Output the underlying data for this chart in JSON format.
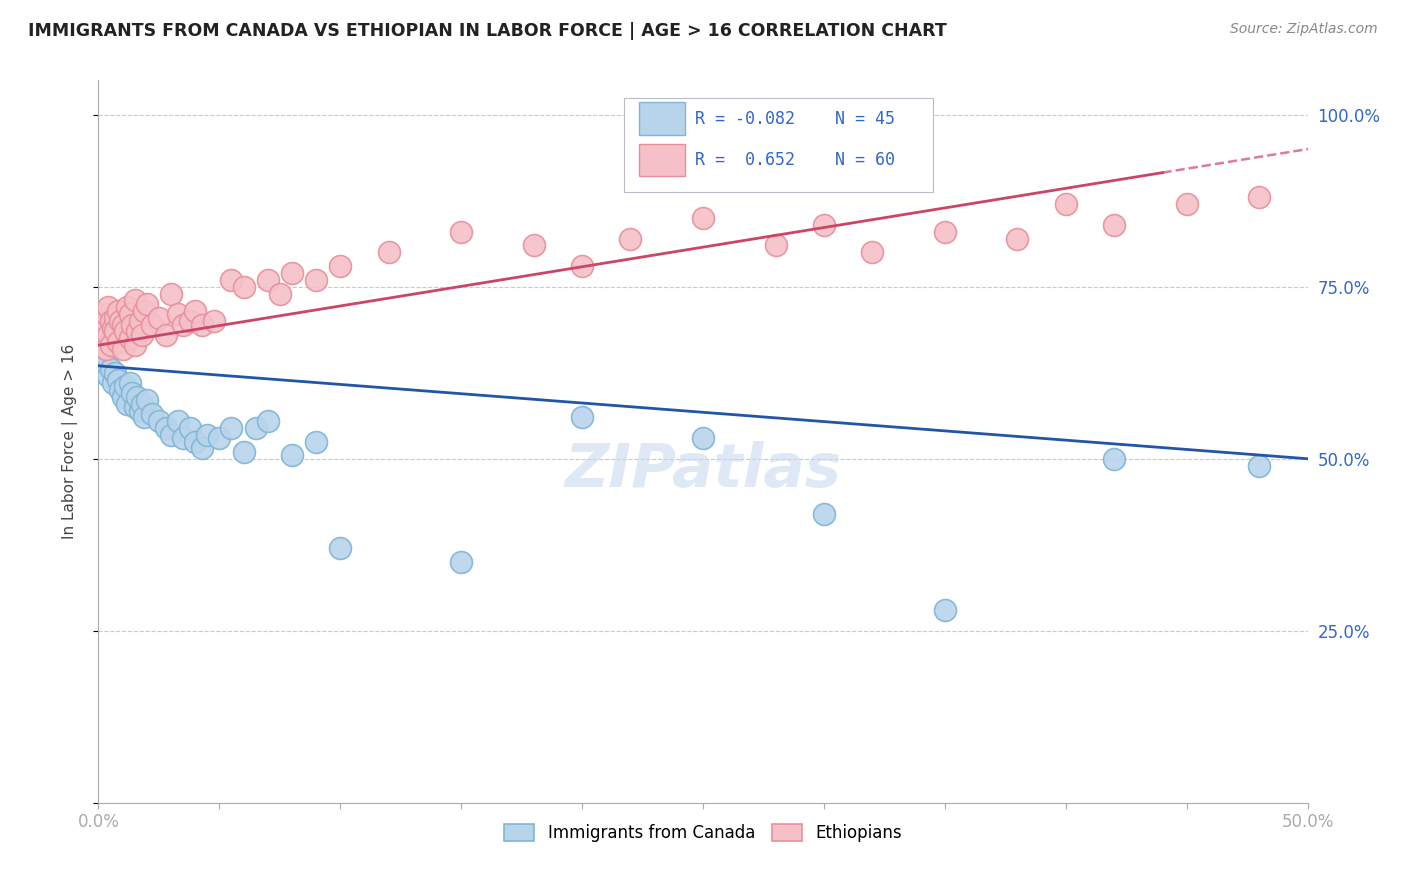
{
  "title": "IMMIGRANTS FROM CANADA VS ETHIOPIAN IN LABOR FORCE | AGE > 16 CORRELATION CHART",
  "source": "Source: ZipAtlas.com",
  "ylabel": "In Labor Force | Age > 16",
  "xlim": [
    0.0,
    0.5
  ],
  "ylim": [
    0.0,
    1.05
  ],
  "blue_color": "#7fb5d8",
  "blue_fill": "#b8d4eb",
  "pink_color": "#e8909a",
  "pink_fill": "#f5c0c8",
  "trend_blue": "#2255aa",
  "trend_pink": "#cc4466",
  "blue_points_x": [
    0.001,
    0.002,
    0.003,
    0.004,
    0.005,
    0.006,
    0.007,
    0.008,
    0.009,
    0.01,
    0.011,
    0.012,
    0.013,
    0.014,
    0.015,
    0.016,
    0.017,
    0.018,
    0.019,
    0.02,
    0.022,
    0.025,
    0.028,
    0.03,
    0.033,
    0.035,
    0.038,
    0.04,
    0.043,
    0.045,
    0.05,
    0.055,
    0.06,
    0.065,
    0.07,
    0.08,
    0.09,
    0.1,
    0.15,
    0.2,
    0.25,
    0.3,
    0.35,
    0.42,
    0.48
  ],
  "blue_points_y": [
    0.64,
    0.66,
    0.65,
    0.62,
    0.63,
    0.61,
    0.625,
    0.615,
    0.6,
    0.59,
    0.605,
    0.58,
    0.61,
    0.595,
    0.575,
    0.59,
    0.57,
    0.58,
    0.56,
    0.585,
    0.565,
    0.555,
    0.545,
    0.535,
    0.555,
    0.53,
    0.545,
    0.525,
    0.515,
    0.535,
    0.53,
    0.545,
    0.51,
    0.545,
    0.555,
    0.505,
    0.525,
    0.37,
    0.35,
    0.56,
    0.53,
    0.42,
    0.28,
    0.5,
    0.49
  ],
  "pink_points_x": [
    0.001,
    0.002,
    0.003,
    0.003,
    0.004,
    0.004,
    0.005,
    0.005,
    0.006,
    0.007,
    0.007,
    0.008,
    0.008,
    0.009,
    0.01,
    0.01,
    0.011,
    0.012,
    0.013,
    0.013,
    0.014,
    0.015,
    0.015,
    0.016,
    0.017,
    0.018,
    0.019,
    0.02,
    0.022,
    0.025,
    0.028,
    0.03,
    0.033,
    0.035,
    0.038,
    0.04,
    0.043,
    0.048,
    0.055,
    0.06,
    0.07,
    0.075,
    0.08,
    0.09,
    0.1,
    0.12,
    0.15,
    0.18,
    0.2,
    0.22,
    0.25,
    0.28,
    0.3,
    0.32,
    0.35,
    0.38,
    0.4,
    0.42,
    0.45,
    0.48
  ],
  "pink_points_y": [
    0.68,
    0.695,
    0.71,
    0.66,
    0.72,
    0.68,
    0.7,
    0.665,
    0.69,
    0.705,
    0.685,
    0.715,
    0.67,
    0.7,
    0.695,
    0.66,
    0.685,
    0.72,
    0.675,
    0.71,
    0.695,
    0.665,
    0.73,
    0.685,
    0.7,
    0.68,
    0.715,
    0.725,
    0.695,
    0.705,
    0.68,
    0.74,
    0.71,
    0.695,
    0.7,
    0.715,
    0.695,
    0.7,
    0.76,
    0.75,
    0.76,
    0.74,
    0.77,
    0.76,
    0.78,
    0.8,
    0.83,
    0.81,
    0.78,
    0.82,
    0.85,
    0.81,
    0.84,
    0.8,
    0.83,
    0.82,
    0.87,
    0.84,
    0.87,
    0.88
  ]
}
